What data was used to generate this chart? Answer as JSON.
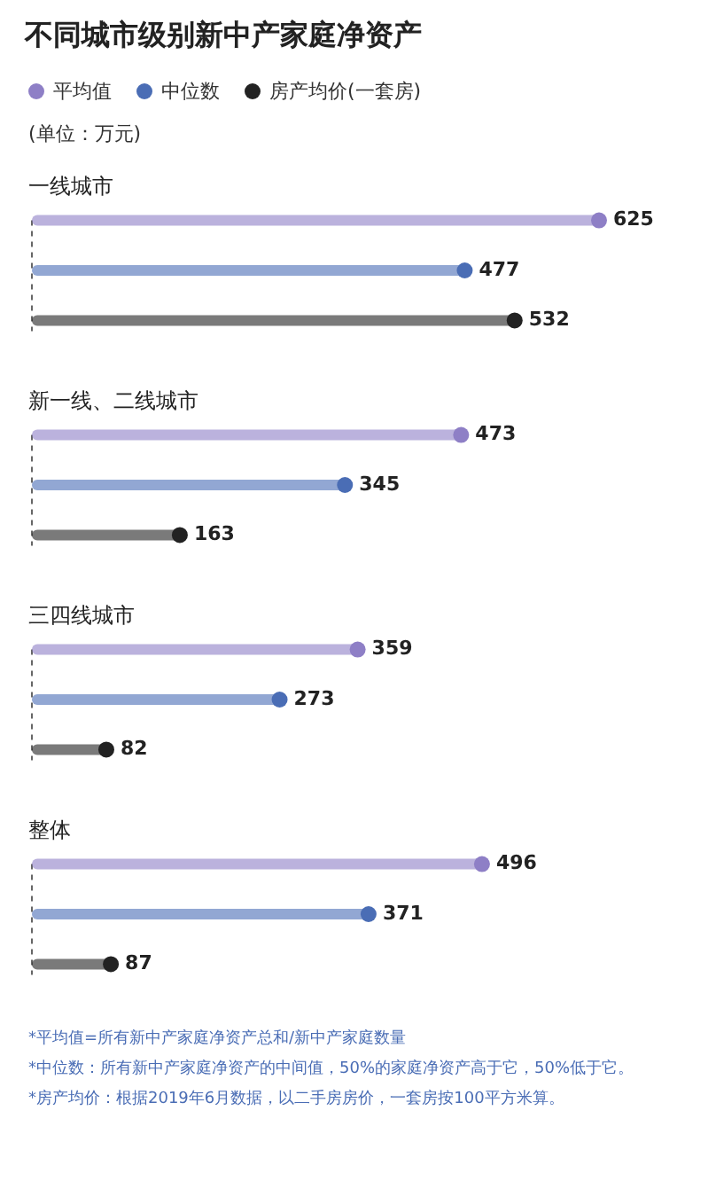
{
  "chart_data": {
    "type": "lollipop",
    "orientation": "horizontal",
    "title": "不同城市级别新中产家庭净资产",
    "subtitle": "(单位：万元)",
    "categories": [
      "一线城市",
      "新一线、二线城市",
      "三四线城市",
      "整体"
    ],
    "series": [
      {
        "name": "平均值",
        "color": "#8e7fc6",
        "values": [
          625,
          473,
          359,
          496
        ]
      },
      {
        "name": "中位数",
        "color": "#4a6db5",
        "values": [
          477,
          345,
          273,
          371
        ]
      },
      {
        "name": "房产均价(一套房)",
        "color": "#222222",
        "values": [
          532,
          163,
          82,
          87
        ]
      }
    ],
    "data_labels": true,
    "legend": "top left",
    "marker": "circle",
    "annotations": [
      "*平均值=所有新中产家庭净资产总和/新中产家庭数量",
      "*中位数：所有新中产家庭净资产的中间值，50%的家庭净资产高于它，50%低于它。",
      "*房产均价：根据2019年6月数据，以二手房房价，一套房按100平方米算。"
    ]
  }
}
